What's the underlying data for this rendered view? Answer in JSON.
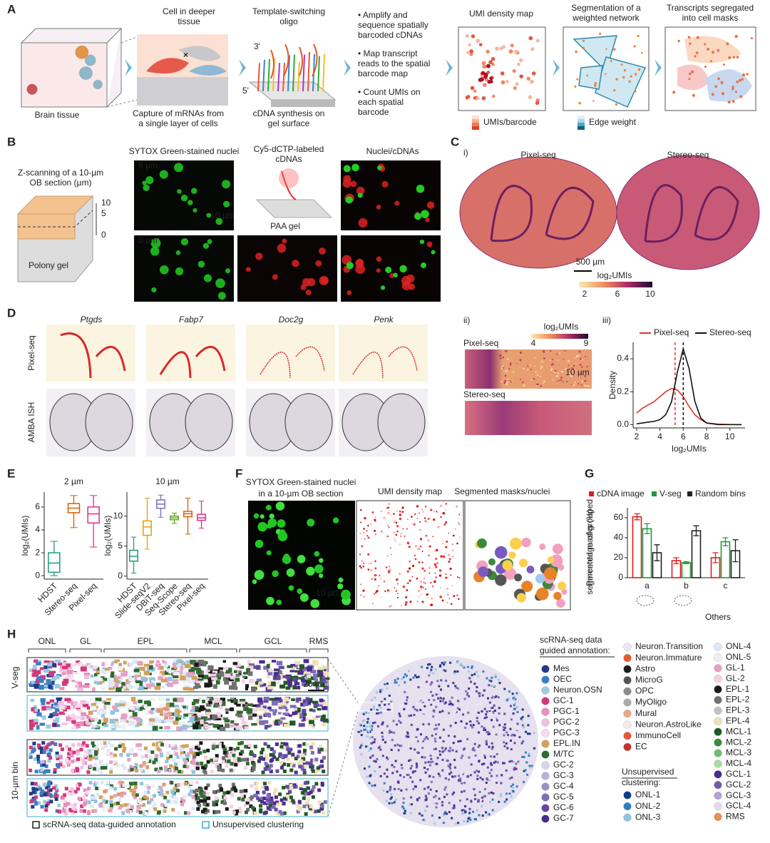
{
  "panels": {
    "A": {
      "label": "A",
      "brain": [
        "Brain tissue"
      ],
      "cell": [
        "Cell in deeper",
        "tissue"
      ],
      "capture": [
        "Capture of mRNAs from",
        "a single layer of cells"
      ],
      "oligo": [
        "Template-switching",
        "oligo"
      ],
      "end3": "3'",
      "end5": "5'",
      "synth": [
        "cDNA synthesis on",
        "gel surface"
      ],
      "steps": [
        [
          "• Amplify and",
          "sequence spatially",
          "barcoded cDNAs"
        ],
        [
          "• Map transcript",
          "reads to the spatial",
          "barcode map"
        ],
        [
          "• Count UMIs on",
          "each spatial",
          "barcode"
        ]
      ],
      "umi_map": "UMI density map",
      "umi_legend": "UMIs/barcode",
      "seg": [
        "Segmentation of a",
        "weighted network"
      ],
      "edge": "Edge weight",
      "masks": [
        "Transcripts segregated",
        "into cell masks"
      ]
    },
    "B": {
      "label": "B",
      "zscan": [
        "Z-scanning of a 10-µm",
        "OB section (µm)"
      ],
      "zticks": [
        10,
        5,
        0
      ],
      "polony": "Polony gel",
      "sytox": "SYTOX Green-stained nuclei",
      "z6": "6 µm",
      "z0": "0 µm",
      "scale": "10 µm",
      "cy5": [
        "Cy5-dCTP-labeled",
        "cDNAs"
      ],
      "paa": "PAA gel",
      "nuclei": "Nuclei",
      "cdnas": "/cDNAs"
    },
    "C": {
      "label": "C",
      "i": "i)",
      "pixel": "Pixel-seq",
      "stereo": "Stereo-seq",
      "scale_i": "500 µm",
      "cbar_title": "log₂UMIs",
      "cbar_ticks": [
        2,
        6,
        10
      ],
      "ii": "ii)",
      "cbar2_title": "log₂UMIs",
      "cbar2_ticks": [
        4,
        9
      ],
      "pixel_ii": "Pixel-seq",
      "stereo_ii": "Stereo-seq",
      "scale_ii": "10 µm"
    },
    "D": {
      "label": "D",
      "genes": [
        "Ptgds",
        "Fabp7",
        "Doc2g",
        "Penk"
      ],
      "rows": [
        "Pixel-seq",
        "AMBA ISH"
      ]
    },
    "E": {
      "label": "E"
    },
    "F": {
      "label": "F",
      "sytox": [
        "SYTOX Green-stained nuclei",
        "in a 10-µm OB section"
      ],
      "umi": "UMI density map",
      "masks": "Segmented masks/",
      "nuclei": "nuclei",
      "scale": "10 µm"
    },
    "G": {
      "label": "G",
      "others": "Others"
    },
    "H": {
      "label": "H",
      "layers": [
        "ONL",
        "GL",
        "EPL",
        "MCL",
        "GCL",
        "RMS"
      ],
      "scale": "20 µm",
      "rows": [
        "V-seg",
        "10-µm bin"
      ],
      "key": [
        "scRNA-seq data-guided annotation",
        "Unsupervised clustering"
      ],
      "legend_heads": [
        [
          "scRNA-seq data",
          "guided annotation:"
        ],
        [
          "Unsupervised",
          "clustering:"
        ]
      ],
      "legend": [
        [
          {
            "name": "Mes",
            "color": "#1f3b8c"
          },
          {
            "name": "OEC",
            "color": "#3a7fc1"
          },
          {
            "name": "Neuron.OSN",
            "color": "#9ec9e2"
          },
          {
            "name": "GC-1",
            "color": "#d6367a"
          },
          {
            "name": "PGC-1",
            "color": "#e88fc0"
          },
          {
            "name": "PGC-2",
            "color": "#f3bfe0"
          },
          {
            "name": "PGC-3",
            "color": "#f6dcec"
          },
          {
            "name": "EPL.IN",
            "color": "#d3a15a"
          },
          {
            "name": "M/TC",
            "color": "#2e6b2e"
          },
          {
            "name": "GC-2",
            "color": "#d7d4ea"
          },
          {
            "name": "GC-3",
            "color": "#b7b2da"
          },
          {
            "name": "GC-4",
            "color": "#9a90ca"
          },
          {
            "name": "GC-5",
            "color": "#7d6db9"
          },
          {
            "name": "GC-6",
            "color": "#6447a5"
          },
          {
            "name": "GC-7",
            "color": "#4d2a92"
          }
        ],
        [
          {
            "name": "Neuron.Transition",
            "color": "#e8e8ee"
          },
          {
            "name": "Neuron.Immature",
            "color": "#e85a2a"
          },
          {
            "name": "Astro",
            "color": "#1a1a1a"
          },
          {
            "name": "MicroG",
            "color": "#555555"
          },
          {
            "name": "OPC",
            "color": "#8a8a8a"
          },
          {
            "name": "MyOligo",
            "color": "#aaaaaa"
          },
          {
            "name": "Mural",
            "color": "#e8a88a"
          },
          {
            "name": "Neuron.AstroLike",
            "color": "#f0ece8"
          },
          {
            "name": "ImmunoCell",
            "color": "#e8553a"
          },
          {
            "name": "EC",
            "color": "#c8302a"
          }
        ],
        [
          {
            "name": "ONL-1",
            "color": "#0b3e8a"
          },
          {
            "name": "ONL-2",
            "color": "#2a7fc0"
          },
          {
            "name": "ONL-3",
            "color": "#8fc4e2"
          }
        ],
        [
          {
            "name": "ONL-4",
            "color": "#dde8f4"
          },
          {
            "name": "ONL-5",
            "color": "#f0f0f4"
          },
          {
            "name": "GL-1",
            "color": "#e8a0c8"
          },
          {
            "name": "GL-2",
            "color": "#f4d0e4"
          },
          {
            "name": "EPL-1",
            "color": "#1a1a1a"
          },
          {
            "name": "EPL-2",
            "color": "#707070"
          },
          {
            "name": "EPL-3",
            "color": "#c0c0c0"
          },
          {
            "name": "EPL-4",
            "color": "#f0e0b8"
          },
          {
            "name": "MCL-1",
            "color": "#1f5a26"
          },
          {
            "name": "MCL-2",
            "color": "#3c8a3c"
          },
          {
            "name": "MCL-3",
            "color": "#6cbf6c"
          },
          {
            "name": "MCL-4",
            "color": "#a8dca0"
          },
          {
            "name": "GCL-1",
            "color": "#4a2a92"
          },
          {
            "name": "GCL-2",
            "color": "#7458b0"
          },
          {
            "name": "GCL-3",
            "color": "#b0a2d6"
          },
          {
            "name": "GCL-4",
            "color": "#e0dcee"
          },
          {
            "name": "RMS",
            "color": "#e89050"
          }
        ]
      ]
    }
  },
  "chart_data": [
    {
      "type": "line",
      "panel": "iii)",
      "xlabel": "log₂UMIs",
      "ylabel": "Density",
      "x": [
        2,
        2.5,
        3,
        3.5,
        4,
        4.5,
        5,
        5.5,
        6,
        6.5,
        7,
        7.5,
        8,
        9,
        10,
        11
      ],
      "series": [
        {
          "name": "Pixel-seq",
          "color": "#e8312a",
          "median": 5.3,
          "values": [
            0.07,
            0.1,
            0.12,
            0.14,
            0.17,
            0.2,
            0.22,
            0.21,
            0.17,
            0.11,
            0.06,
            0.03,
            0.01,
            0.003,
            0.001,
            0
          ]
        },
        {
          "name": "Stereo-seq",
          "color": "#111111",
          "median": 6.0,
          "values": [
            0.005,
            0.01,
            0.015,
            0.02,
            0.03,
            0.06,
            0.14,
            0.32,
            0.46,
            0.34,
            0.14,
            0.04,
            0.01,
            0,
            0,
            0
          ]
        }
      ],
      "xlim": [
        1.7,
        11.3
      ],
      "ylim": [
        -0.02,
        0.5
      ],
      "xticks": [
        2,
        4,
        6,
        8,
        10
      ],
      "yticks": [
        {
          "value": 0,
          "label": "0.0"
        },
        {
          "value": 0.2,
          "label": "0.2"
        },
        {
          "value": 0.4,
          "label": "0.4"
        }
      ]
    },
    {
      "type": "box",
      "title": "2 µm",
      "ylabel": "log₂(UMIs)",
      "categories": [
        "HDST",
        "Stereo-seq",
        "Pixel-seq"
      ],
      "colors": [
        "#1a9e77",
        "#d95f02",
        "#e7298a"
      ],
      "min": [
        0,
        4.2,
        2.5
      ],
      "q1": [
        0.3,
        5.5,
        4.6
      ],
      "median": [
        1.1,
        5.9,
        5.4
      ],
      "q3": [
        2,
        6.3,
        6
      ],
      "max": [
        3,
        7,
        7
      ],
      "ylim": [
        -0.3,
        7.3
      ],
      "yticks": [
        0,
        2,
        4,
        6
      ]
    },
    {
      "type": "box",
      "title": "10 µm",
      "ylabel": "log₂(UMIs)",
      "categories": [
        "HDST",
        "Slide-seqV2",
        "DBiT-seq",
        "Seq-Scope",
        "Stereo-seq",
        "Pixel-seq"
      ],
      "colors": [
        "#1a9e77",
        "#e6a000",
        "#7570b3",
        "#66a61e",
        "#d95f02",
        "#e7298a"
      ],
      "min": [
        0.5,
        4.5,
        9.8,
        8.8,
        7,
        8
      ],
      "q1": [
        2.5,
        6.8,
        11.3,
        9.4,
        9.9,
        9.3
      ],
      "median": [
        3.3,
        8.2,
        12,
        9.7,
        10.4,
        9.7
      ],
      "q3": [
        4.3,
        9.2,
        12.7,
        10,
        10.8,
        10.3
      ],
      "max": [
        6.5,
        13,
        13.5,
        10.5,
        13,
        12.5
      ],
      "ylim": [
        -0.5,
        14
      ],
      "yticks": [
        0,
        5,
        10
      ]
    },
    {
      "type": "bar",
      "ylabel": [
        "Percentage of grouped",
        "segmented masks (%)"
      ],
      "categories": [
        "a",
        "b",
        "c"
      ],
      "series": [
        {
          "name": "cDNA image",
          "color": "#e31a1c",
          "values": [
            61,
            17,
            20
          ],
          "errors": [
            3,
            3,
            5
          ]
        },
        {
          "name": "V-seg",
          "color": "#1f9a3a",
          "values": [
            49,
            15,
            36
          ],
          "errors": [
            5,
            1,
            4
          ]
        },
        {
          "name": "Random bins",
          "color": "#222222",
          "values": [
            25,
            47,
            27
          ],
          "errors": [
            8,
            5,
            11
          ]
        }
      ],
      "ylim": [
        0,
        70
      ],
      "yticks": [
        0,
        20,
        40,
        60
      ]
    }
  ]
}
